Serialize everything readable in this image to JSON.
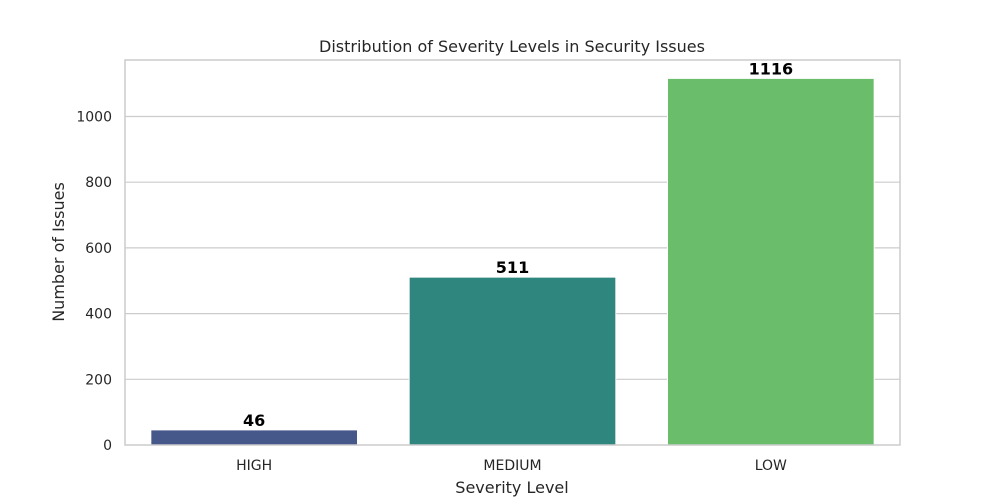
{
  "chart_data": {
    "type": "bar",
    "title": "Distribution of Severity Levels in Security Issues",
    "xlabel": "Severity Level",
    "ylabel": "Number of Issues",
    "categories": [
      "HIGH",
      "MEDIUM",
      "LOW"
    ],
    "values": [
      46,
      511,
      1116
    ],
    "data_labels": [
      "46",
      "511",
      "1116"
    ],
    "colors": [
      "#46578a",
      "#2e867f",
      "#6abd6b"
    ],
    "ylim": [
      0,
      1172
    ],
    "yticks": [
      0,
      200,
      400,
      600,
      800,
      1000
    ],
    "ytick_labels": [
      "0",
      "200",
      "400",
      "600",
      "800",
      "1000"
    ],
    "grid": "horizontal",
    "legend": "none"
  }
}
